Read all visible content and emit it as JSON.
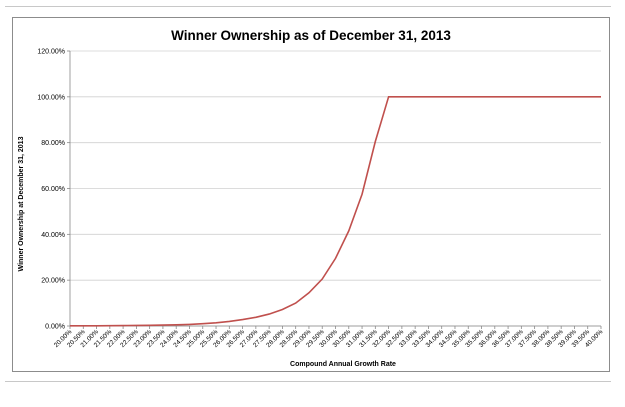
{
  "chart_data": {
    "type": "line",
    "title": "Winner Ownership as of December 31, 2013",
    "xlabel": "Compound Annual Growth Rate",
    "ylabel": "Winner Ownership at December 31, 2013",
    "ylim": [
      0,
      120
    ],
    "yticks": [
      "0.00%",
      "20.00%",
      "40.00%",
      "60.00%",
      "80.00%",
      "100.00%",
      "120.00%"
    ],
    "grid": true,
    "legend": "none",
    "line_color": "#c0504d",
    "categories": [
      "20.00%",
      "20.50%",
      "21.00%",
      "21.50%",
      "22.00%",
      "22.50%",
      "23.00%",
      "23.50%",
      "24.00%",
      "24.50%",
      "25.00%",
      "25.50%",
      "26.00%",
      "26.50%",
      "27.00%",
      "27.50%",
      "28.00%",
      "28.50%",
      "29.00%",
      "29.50%",
      "30.00%",
      "30.50%",
      "31.00%",
      "31.50%",
      "32.00%",
      "32.50%",
      "33.00%",
      "33.50%",
      "34.00%",
      "34.50%",
      "35.00%",
      "35.50%",
      "36.00%",
      "36.50%",
      "37.00%",
      "37.50%",
      "38.00%",
      "38.50%",
      "39.00%",
      "39.50%",
      "40.00%"
    ],
    "values": [
      0.1,
      0.1,
      0.1,
      0.15,
      0.2,
      0.25,
      0.3,
      0.4,
      0.5,
      0.7,
      1.0,
      1.4,
      2.0,
      2.8,
      3.8,
      5.2,
      7.2,
      10.0,
      14.5,
      20.5,
      29.5,
      41.5,
      57.5,
      80.5,
      100,
      100,
      100,
      100,
      100,
      100,
      100,
      100,
      100,
      100,
      100,
      100,
      100,
      100,
      100,
      100,
      100
    ]
  }
}
